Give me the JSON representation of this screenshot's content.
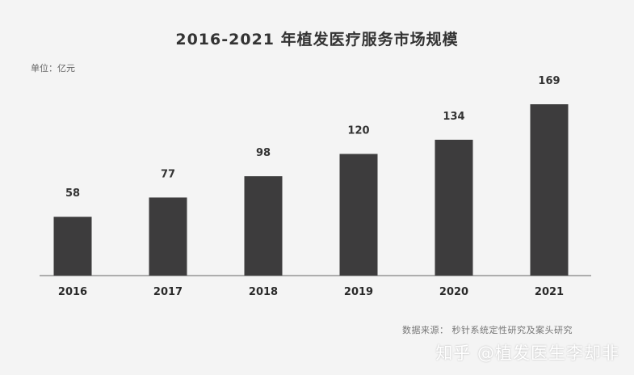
{
  "unit_label": "单位：亿元",
  "source_note": "数据来源：  秒针系统定性研究及案头研究",
  "watermark": "知乎 @植发医生李却非",
  "colors": {
    "background": "#f4f4f4",
    "bar": "#3d3c3d",
    "axis": "#666666",
    "text": "#333333"
  },
  "chart_data": {
    "type": "bar",
    "title": "2016-2021 年植发医疗服务市场规模",
    "xlabel": "",
    "ylabel": "",
    "categories": [
      "2016",
      "2017",
      "2018",
      "2019",
      "2020",
      "2021"
    ],
    "values": [
      58,
      77,
      98,
      120,
      134,
      169
    ],
    "ylim": [
      0,
      169
    ],
    "grid": false,
    "data_labels": true
  }
}
